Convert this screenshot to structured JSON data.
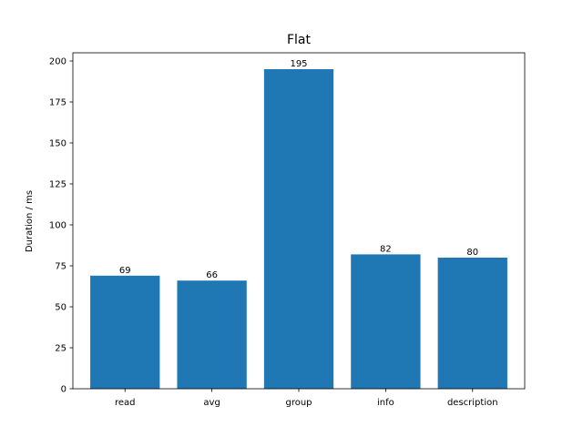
{
  "chart_data": {
    "type": "bar",
    "title": "Flat",
    "xlabel": "",
    "ylabel": "Duration / ms",
    "categories": [
      "read",
      "avg",
      "group",
      "info",
      "description"
    ],
    "values": [
      69,
      66,
      195,
      82,
      80
    ],
    "data_labels": [
      "69",
      "66",
      "195",
      "82",
      "80"
    ],
    "ylim": [
      0,
      205
    ],
    "yticks": [
      0,
      25,
      50,
      75,
      100,
      125,
      150,
      175,
      200
    ],
    "grid": false,
    "bar_color": "#1f77b4"
  }
}
